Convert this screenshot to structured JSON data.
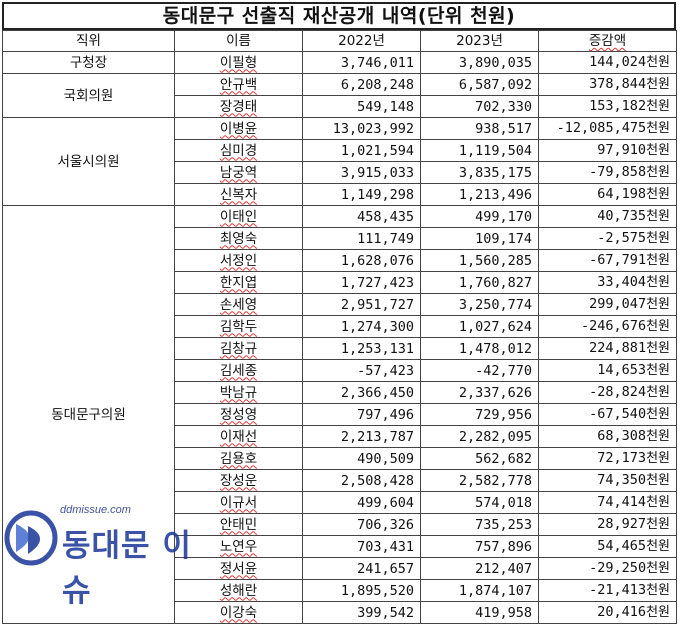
{
  "title": "동대문구 선출직 재산공개 내역(단위 천원)",
  "headers": {
    "role": "직위",
    "name": "이름",
    "y2022": "2022년",
    "y2023": "2023년",
    "diff": "증감액"
  },
  "unit": "천원",
  "groups": [
    {
      "role": "구청장",
      "rows": [
        {
          "name": "이필형",
          "y2022": "3,746,011",
          "y2023": "3,890,035",
          "diff": "144,024"
        }
      ]
    },
    {
      "role": "국회의원",
      "rows": [
        {
          "name": "안규백",
          "y2022": "6,208,248",
          "y2023": "6,587,092",
          "diff": "378,844"
        },
        {
          "name": "장경태",
          "y2022": "549,148",
          "y2023": "702,330",
          "diff": "153,182"
        }
      ]
    },
    {
      "role": "서울시의원",
      "rows": [
        {
          "name": "이병윤",
          "y2022": "13,023,992",
          "y2023": "938,517",
          "diff": "-12,085,475"
        },
        {
          "name": "심미경",
          "y2022": "1,021,594",
          "y2023": "1,119,504",
          "diff": "97,910"
        },
        {
          "name": "남궁역",
          "y2022": "3,915,033",
          "y2023": "3,835,175",
          "diff": "-79,858"
        },
        {
          "name": "신복자",
          "y2022": "1,149,298",
          "y2023": "1,213,496",
          "diff": "64,198"
        }
      ]
    },
    {
      "role": "동대문구의원",
      "rows": [
        {
          "name": "이태인",
          "y2022": "458,435",
          "y2023": "499,170",
          "diff": "40,735"
        },
        {
          "name": "최영숙",
          "y2022": "111,749",
          "y2023": "109,174",
          "diff": "-2,575"
        },
        {
          "name": "서정인",
          "y2022": "1,628,076",
          "y2023": "1,560,285",
          "diff": "-67,791"
        },
        {
          "name": "한지엽",
          "y2022": "1,727,423",
          "y2023": "1,760,827",
          "diff": "33,404"
        },
        {
          "name": "손세영",
          "y2022": "2,951,727",
          "y2023": "3,250,774",
          "diff": "299,047"
        },
        {
          "name": "김학두",
          "y2022": "1,274,300",
          "y2023": "1,027,624",
          "diff": "-246,676"
        },
        {
          "name": "김창규",
          "y2022": "1,253,131",
          "y2023": "1,478,012",
          "diff": "224,881"
        },
        {
          "name": "김세종",
          "y2022": "-57,423",
          "y2023": "-42,770",
          "diff": "14,653"
        },
        {
          "name": "박남규",
          "y2022": "2,366,450",
          "y2023": "2,337,626",
          "diff": "-28,824"
        },
        {
          "name": "정성영",
          "y2022": "797,496",
          "y2023": "729,956",
          "diff": "-67,540"
        },
        {
          "name": "이재선",
          "y2022": "2,213,787",
          "y2023": "2,282,095",
          "diff": "68,308"
        },
        {
          "name": "김용호",
          "y2022": "490,509",
          "y2023": "562,682",
          "diff": "72,173"
        },
        {
          "name": "장성운",
          "y2022": "2,508,428",
          "y2023": "2,582,778",
          "diff": "74,350"
        },
        {
          "name": "이규서",
          "y2022": "499,604",
          "y2023": "574,018",
          "diff": "74,414"
        },
        {
          "name": "안태민",
          "y2022": "706,326",
          "y2023": "735,253",
          "diff": "28,927"
        },
        {
          "name": "노연우",
          "y2022": "703,431",
          "y2023": "757,896",
          "diff": "54,465"
        },
        {
          "name": "정서윤",
          "y2022": "241,657",
          "y2023": "212,407",
          "diff": "-29,250"
        },
        {
          "name": "성해란",
          "y2022": "1,895,520",
          "y2023": "1,874,107",
          "diff": "-21,413"
        },
        {
          "name": "이강숙",
          "y2022": "399,542",
          "y2023": "419,958",
          "diff": "20,416"
        }
      ]
    }
  ],
  "watermark": {
    "site": "ddmissue.com",
    "brand": "동대문 이슈",
    "icon": "dd-logo-icon",
    "color": "#1f3c9a"
  }
}
